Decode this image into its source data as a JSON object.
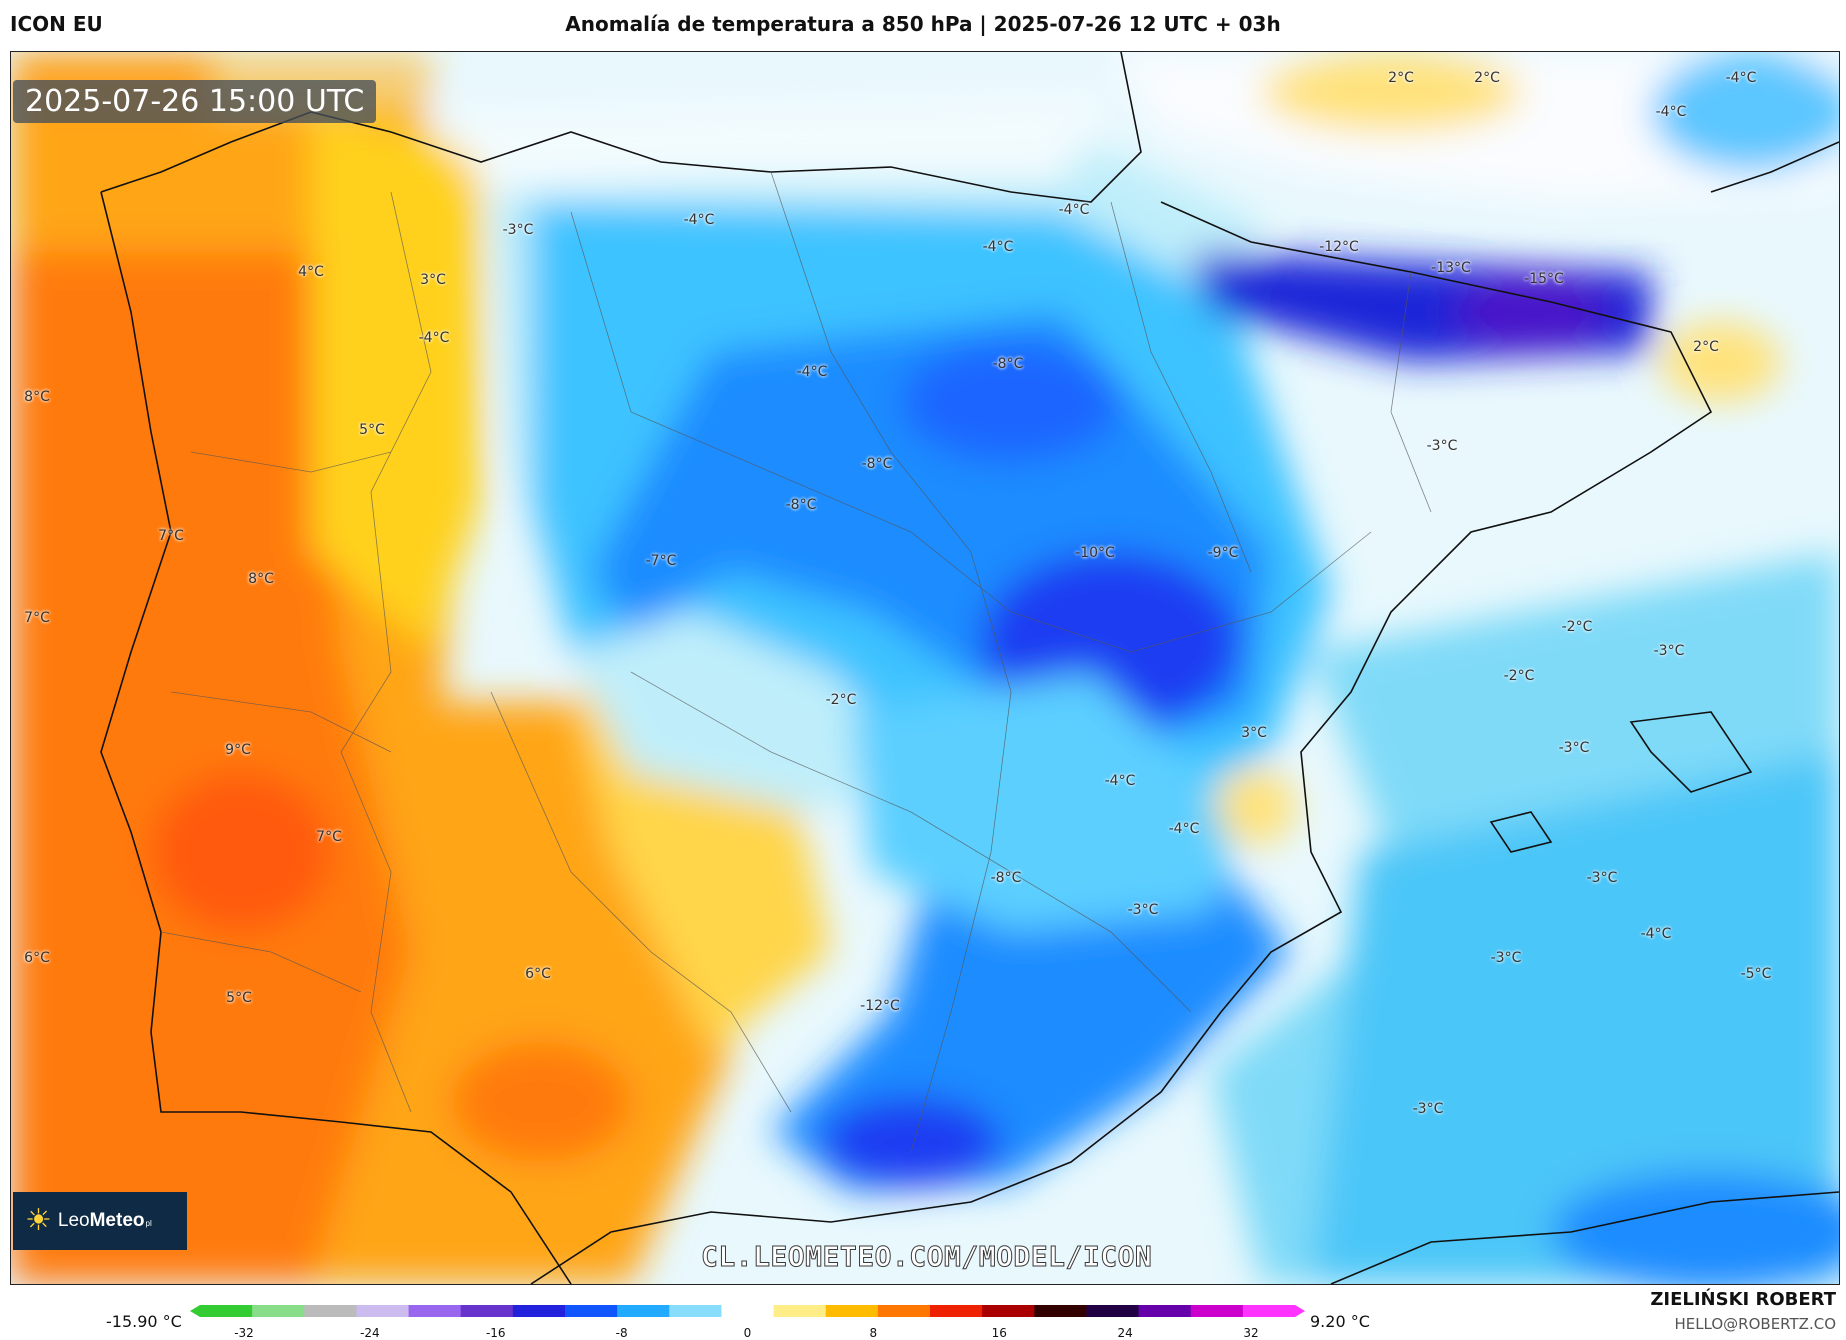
{
  "header": {
    "model": "ICON EU",
    "title": "Anomalía de temperatura a 850 hPa | 2025-07-26 12 UTC + 03h"
  },
  "map": {
    "timestamp": "2025-07-26 15:00 UTC",
    "watermark": "CL.LEOMETEO.COM/MODEL/ICON",
    "logo": {
      "name": "LeoMeteo",
      "part1": "Leo",
      "part2": "Meteo",
      "suffix": "pl"
    },
    "labels": [
      "2°C",
      "2°C",
      "-4°C",
      "-4°C",
      "-3°C",
      "-4°C",
      "-4°C",
      "-4°C",
      "4°C",
      "3°C",
      "-4°C",
      "-12°C",
      "-13°C",
      "-15°C",
      "2°C",
      "8°C",
      "-4°C",
      "-8°C",
      "5°C",
      "-3°C",
      "-8°C",
      "-8°C",
      "7°C",
      "-7°C",
      "-10°C",
      "-9°C",
      "8°C",
      "7°C",
      "-2°C",
      "-3°C",
      "-2°C",
      "-2°C",
      "9°C",
      "3°C",
      "-3°C",
      "-4°C",
      "7°C",
      "-4°C",
      "-8°C",
      "-3°C",
      "-3°C",
      "6°C",
      "6°C",
      "-4°C",
      "-3°C",
      "5°C",
      "-5°C",
      "-12°C",
      "-3°C"
    ]
  },
  "legend": {
    "min": "-15.90 °C",
    "max": "9.20 °C",
    "ticks": [
      "-32",
      "-24",
      "-16",
      "-8",
      "0",
      "8",
      "16",
      "24",
      "32"
    ],
    "colors": [
      "#33cc33",
      "#88dd88",
      "#bbbbbb",
      "#ccbbee",
      "#9966ee",
      "#6633cc",
      "#2222dd",
      "#1155ff",
      "#22aaff",
      "#88ddff",
      "#ffffff",
      "#ffee88",
      "#ffbb00",
      "#ff7700",
      "#ee2200",
      "#aa0000",
      "#330000",
      "#220044",
      "#6600aa",
      "#cc00cc",
      "#ff33ff"
    ]
  },
  "credit": {
    "name": "ZIELIŃSKI ROBERT",
    "email": "HELLO@ROBERTZ.CO"
  }
}
